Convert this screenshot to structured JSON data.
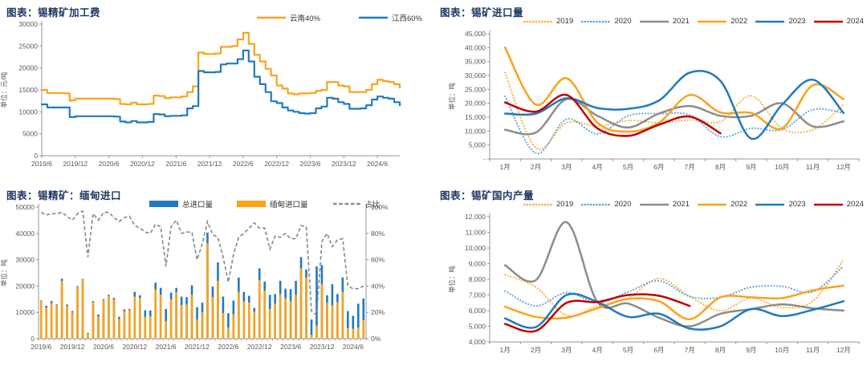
{
  "page": {
    "background": "#FFFFFF"
  },
  "colors": {
    "title_navy": "#1F3864",
    "axis_line": "#969696",
    "axis_text": "#595959",
    "orange": "#F9A31C",
    "orange_dotted": "#FCB03E",
    "blue": "#1F7AC0",
    "blue_dotted": "#5BA5DC",
    "gray": "#8C8C8C",
    "red": "#C00000"
  },
  "charts": [
    {
      "title": "图表：锡精矿加工费",
      "unit_label": "单位：元/吨",
      "chart_data": {
        "type": "line",
        "subtype": "step",
        "ylim": [
          0,
          30000
        ],
        "yticks": [
          0,
          5000,
          10000,
          15000,
          20000,
          25000,
          30000
        ],
        "comma_format": false,
        "xtick_labels": [
          "2019/6",
          "2019/12",
          "2020/6",
          "2020/12",
          "2021/6",
          "2021/12",
          "2022/6",
          "2022/12",
          "2023/6",
          "2023/12",
          "2024/6"
        ],
        "xtick_step": 6,
        "series": [
          {
            "name": "云南40%",
            "color": "#F9A31C",
            "style": "solid",
            "values": [
              15000,
              14300,
              14300,
              14300,
              14200,
              12600,
              13000,
              13000,
              13000,
              13000,
              13000,
              13000,
              13000,
              12900,
              11800,
              11700,
              12100,
              11700,
              11700,
              11800,
              13700,
              13600,
              13100,
              13300,
              13300,
              13500,
              14500,
              15800,
              23500,
              23200,
              23200,
              23300,
              24800,
              24800,
              25000,
              26500,
              28000,
              25500,
              23000,
              21500,
              19800,
              18300,
              16000,
              15300,
              14200,
              14000,
              14200,
              14200,
              14300,
              14800,
              15000,
              16800,
              16800,
              16000,
              15800,
              14500,
              14500,
              14500,
              15000,
              16300,
              17300,
              17000,
              16800,
              16300,
              15500
            ]
          },
          {
            "name": "江西60%",
            "color": "#1F7AC0",
            "style": "solid",
            "values": [
              11700,
              11000,
              11000,
              11000,
              11000,
              8800,
              9000,
              9000,
              9000,
              9000,
              9000,
              9000,
              9000,
              8900,
              7800,
              7600,
              7900,
              7600,
              7600,
              7700,
              9500,
              9400,
              9000,
              9100,
              9100,
              9200,
              10800,
              11300,
              19300,
              19000,
              19000,
              19100,
              20800,
              21000,
              21000,
              22000,
              24000,
              21500,
              18000,
              16300,
              14500,
              12400,
              12000,
              11000,
              10300,
              10000,
              9700,
              9600,
              9700,
              10800,
              11200,
              13200,
              13000,
              12200,
              11800,
              10700,
              10700,
              10800,
              11500,
              12800,
              13500,
              13200,
              13000,
              12200,
              11500
            ]
          }
        ]
      }
    },
    {
      "title": "图表：锡矿进口量",
      "unit_label": "单位：吨",
      "chart_data": {
        "type": "line",
        "subtype": "spline",
        "ylim": [
          0,
          45000
        ],
        "yticks": [
          0,
          5000,
          10000,
          15000,
          20000,
          25000,
          30000,
          35000,
          40000,
          45000
        ],
        "zero_as_dash": true,
        "comma_format": true,
        "categories": [
          "1月",
          "2月",
          "3月",
          "4月",
          "5月",
          "6月",
          "7月",
          "8月",
          "9月",
          "10月",
          "11月",
          "12月"
        ],
        "series": [
          {
            "name": "2019",
            "color": "#FCB03E",
            "style": "dotted",
            "values": [
              31000,
              4000,
              13000,
              11800,
              13800,
              13000,
              14000,
              13500,
              22700,
              11000,
              10500,
              19500
            ]
          },
          {
            "name": "2020",
            "color": "#5BA5DC",
            "style": "dotted",
            "values": [
              22500,
              2000,
              14300,
              9000,
              15500,
              16300,
              15700,
              8000,
              11000,
              10500,
              17700,
              16500
            ]
          },
          {
            "name": "2021",
            "color": "#8C8C8C",
            "style": "solid",
            "values": [
              10500,
              9500,
              21500,
              15500,
              11300,
              16300,
              19000,
              15500,
              15500,
              20000,
              11700,
              13500
            ]
          },
          {
            "name": "2022",
            "color": "#F9A31C",
            "style": "solid",
            "values": [
              40000,
              19500,
              29000,
              13000,
              9800,
              13000,
              23000,
              16700,
              16500,
              11000,
              26500,
              21500
            ]
          },
          {
            "name": "2023",
            "color": "#1F7AC0",
            "style": "solid",
            "values": [
              16300,
              16300,
              21800,
              18300,
              18000,
              21000,
              31000,
              28000,
              7300,
              19500,
              28500,
              16500
            ]
          },
          {
            "name": "2024",
            "color": "#C00000",
            "style": "solid",
            "values": [
              20300,
              17000,
              23000,
              11000,
              8300,
              12300,
              15200,
              9200
            ]
          }
        ]
      }
    },
    {
      "title": "图表：锡精矿：缅甸进口",
      "unit_label": "单位：吨",
      "chart_data": {
        "type": "bar",
        "subtype": "bar-with-ratio-line",
        "ylim_left": [
          0,
          50000
        ],
        "yticks_left": [
          0,
          10000,
          20000,
          30000,
          40000,
          50000
        ],
        "ylim_right": [
          0,
          100
        ],
        "yticks_right": [
          0,
          20,
          40,
          60,
          80,
          100
        ],
        "comma_format": false,
        "xtick_labels": [
          "2019/6",
          "2019/12",
          "2020/6",
          "2020/12",
          "2021/6",
          "2021/12",
          "2022/6",
          "2022/12",
          "2023/6",
          "2023/12",
          "2024/6"
        ],
        "xtick_step": 6,
        "bars": [
          {
            "name": "总进口量",
            "color": "#1F7AC0",
            "values": [
              14500,
              12500,
              14300,
              13000,
              22800,
              13000,
              10500,
              20000,
              22700,
              2200,
              14300,
              9200,
              15000,
              16700,
              15500,
              8300,
              11200,
              11300,
              17800,
              16500,
              10800,
              10700,
              21300,
              19300,
              11300,
              17500,
              19300,
              16000,
              15800,
              20300,
              12000,
              13700,
              40300,
              19800,
              29000,
              16000,
              9700,
              14500,
              23200,
              17700,
              16300,
              11700,
              26700,
              21700,
              16700,
              17000,
              22000,
              19000,
              18800,
              22000,
              31000,
              26300,
              7300,
              27500,
              28000,
              16500,
              20700,
              17000,
              23300,
              10500,
              8700,
              13300,
              15300
            ]
          },
          {
            "name": "缅甸进口量",
            "color": "#F9A31C",
            "values": [
              14300,
              11800,
              13500,
              12700,
              22000,
              12500,
              10000,
              19800,
              22500,
              2000,
              14000,
              8500,
              14700,
              16300,
              15000,
              7500,
              10500,
              11000,
              16000,
              15500,
              8300,
              8500,
              18700,
              16700,
              6700,
              15000,
              17800,
              12800,
              13000,
              16700,
              7300,
              10000,
              36300,
              15800,
              22000,
              9800,
              4300,
              9300,
              17800,
              14200,
              13800,
              10300,
              22300,
              18300,
              11300,
              13300,
              17000,
              15300,
              14300,
              16700,
              26700,
              23300,
              1500,
              5000,
              20700,
              13700,
              12700,
              14000,
              17800,
              4000,
              3800,
              4300,
              7000
            ]
          }
        ],
        "line": {
          "name": "占比",
          "color": "#8C8C8C",
          "style": "dashed",
          "values": [
            96,
            94,
            95,
            95,
            96,
            93,
            90,
            95,
            97,
            62,
            95,
            90,
            96,
            96,
            92,
            89,
            92,
            93,
            86,
            84,
            81,
            80,
            87,
            85,
            55,
            85,
            90,
            80,
            81,
            81,
            60,
            72,
            89,
            79,
            77,
            62,
            43,
            64,
            77,
            80,
            84,
            88,
            84,
            84,
            68,
            78,
            77,
            80,
            76,
            76,
            86,
            85,
            21,
            18,
            74,
            80,
            70,
            75,
            76,
            40,
            38,
            38,
            40
          ]
        }
      }
    },
    {
      "title": "图表：锡矿国内产量",
      "unit_label": "单位：吨",
      "chart_data": {
        "type": "line",
        "subtype": "spline",
        "ylim": [
          4000,
          12000
        ],
        "yticks": [
          4000,
          5000,
          6000,
          7000,
          8000,
          9000,
          10000,
          11000,
          12000
        ],
        "comma_format": true,
        "categories": [
          "1月",
          "2月",
          "3月",
          "4月",
          "5月",
          "6月",
          "7月",
          "8月",
          "9月",
          "10月",
          "11月",
          "12月"
        ],
        "series": [
          {
            "name": "2019",
            "color": "#FCB03E",
            "style": "dotted",
            "values": [
              8300,
              7500,
              5700,
              6300,
              6800,
              8050,
              6900,
              6000,
              6800,
              6200,
              6600,
              9250
            ]
          },
          {
            "name": "2020",
            "color": "#5BA5DC",
            "style": "dotted",
            "values": [
              7250,
              6300,
              7150,
              6500,
              7200,
              7900,
              6900,
              6850,
              7500,
              7550,
              7200,
              8850
            ]
          },
          {
            "name": "2021",
            "color": "#8C8C8C",
            "style": "solid",
            "values": [
              8900,
              7950,
              11650,
              6550,
              6450,
              5550,
              5000,
              5800,
              6100,
              6400,
              6150,
              6000
            ]
          },
          {
            "name": "2022",
            "color": "#F9A31C",
            "style": "solid",
            "values": [
              6250,
              5600,
              5550,
              6150,
              6750,
              6600,
              5450,
              6850,
              6850,
              6800,
              7300,
              7600
            ]
          },
          {
            "name": "2023",
            "color": "#1F7AC0",
            "style": "solid",
            "values": [
              5500,
              4950,
              7000,
              6550,
              5600,
              5800,
              4850,
              5000,
              6100,
              5650,
              6050,
              6600
            ]
          },
          {
            "name": "2024",
            "color": "#C00000",
            "style": "solid",
            "values": [
              5150,
              4700,
              6500,
              6550,
              7000,
              6950,
              6300
            ]
          }
        ]
      }
    }
  ]
}
